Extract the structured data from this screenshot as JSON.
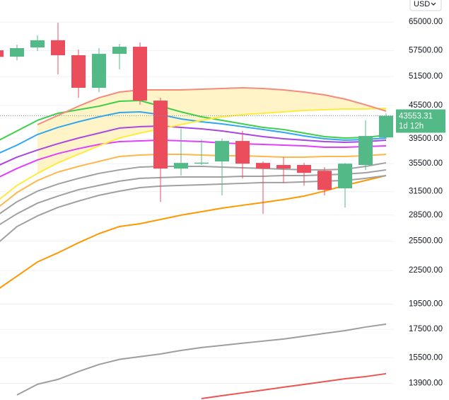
{
  "chart_data": {
    "type": "candlestick",
    "currency": "USD",
    "countdown": "1d 12h",
    "log_scale": true,
    "grid": true,
    "up_color": "#53b987",
    "down_color": "#eb4d5c",
    "open": [
      57600,
      56060,
      58300,
      60130,
      56400,
      49080,
      56730,
      58480,
      46470,
      34760,
      35500,
      35830,
      39110,
      35610,
      35300,
      35300,
      34440,
      31950,
      35300,
      39700
    ],
    "high": [
      57600,
      59000,
      61400,
      64800,
      57780,
      58130,
      59200,
      59560,
      47030,
      41200,
      39350,
      39500,
      40830,
      35830,
      36520,
      35610,
      34970,
      35610,
      42740,
      44000
    ],
    "low": [
      56000,
      55200,
      57430,
      51980,
      47030,
      48200,
      53090,
      45640,
      30150,
      33740,
      35300,
      31000,
      33330,
      28650,
      32700,
      32300,
      31000,
      29440,
      34550,
      39500
    ],
    "close": [
      56000,
      58130,
      60130,
      56400,
      49080,
      56730,
      58480,
      46470,
      34760,
      35610,
      35650,
      39110,
      35500,
      34760,
      34760,
      34130,
      31740,
      35500,
      39950,
      43553.31
    ],
    "series": [
      {
        "color": "#ef5350",
        "values": [
          null,
          null,
          null,
          null,
          null,
          null,
          null,
          null,
          null,
          null,
          13020,
          13180,
          13340,
          13500,
          13670,
          13830,
          14000,
          14170,
          14300,
          14480
        ]
      },
      {
        "color": "#9e9e9e",
        "values": [
          null,
          13220,
          13840,
          14130,
          14610,
          15060,
          15390,
          15570,
          15750,
          15990,
          16190,
          16340,
          16490,
          16640,
          16790,
          16990,
          17200,
          17400,
          17670,
          17890
        ]
      },
      {
        "color": "#ff9800",
        "values": [
          20670,
          21960,
          23330,
          24260,
          25320,
          26330,
          27140,
          27470,
          27970,
          28490,
          28920,
          29360,
          29720,
          30080,
          30450,
          30910,
          31570,
          32350,
          33040,
          33740
        ]
      },
      {
        "color": "#a0a0a0",
        "values": [
          25160,
          27140,
          28400,
          29450,
          30260,
          31010,
          31570,
          32050,
          32250,
          32350,
          32440,
          32540,
          32640,
          32740,
          32740,
          32840,
          32940,
          33040,
          33340,
          33740
        ]
      },
      {
        "color": "#a0a0a0",
        "values": [
          27140,
          28660,
          29990,
          30910,
          31760,
          32350,
          32940,
          33340,
          33440,
          33540,
          33540,
          33540,
          33640,
          33640,
          33740,
          33740,
          33840,
          33940,
          34150,
          34570
        ]
      },
      {
        "color": "#a0a0a0",
        "values": [
          28400,
          30170,
          31570,
          32540,
          33340,
          34050,
          34570,
          34990,
          35090,
          35090,
          35090,
          34990,
          34880,
          34780,
          34670,
          34570,
          34570,
          34670,
          35090,
          35630
        ]
      },
      {
        "color": "#ffb74d",
        "values": [
          29270,
          31380,
          33040,
          34250,
          35090,
          35840,
          36610,
          36830,
          36940,
          36940,
          36830,
          36720,
          36720,
          36610,
          36500,
          36500,
          36610,
          36610,
          36720,
          36940
        ]
      },
      {
        "color": "#e040fb",
        "values": [
          33340,
          34780,
          36060,
          37060,
          37850,
          38540,
          39010,
          39130,
          39240,
          39130,
          39010,
          38770,
          38660,
          38540,
          38420,
          38310,
          38080,
          38080,
          38190,
          38310
        ]
      },
      {
        "color": "#aa46e0",
        "values": [
          35090,
          36500,
          37620,
          38660,
          39600,
          40450,
          41320,
          41570,
          41690,
          41440,
          41190,
          40820,
          40330,
          39840,
          39480,
          39240,
          39010,
          38890,
          39010,
          39240
        ]
      },
      {
        "color": "#2fa7f3",
        "values": [
          36940,
          38420,
          40200,
          41440,
          42450,
          43360,
          44150,
          44290,
          43760,
          42970,
          42450,
          42070,
          41570,
          41070,
          40570,
          39960,
          39480,
          39240,
          39360,
          39600
        ]
      },
      {
        "color": "#3cd04a",
        "values": [
          39010,
          40820,
          42710,
          44020,
          44690,
          45370,
          46340,
          46480,
          45370,
          44290,
          43360,
          42710,
          42070,
          41440,
          41070,
          40450,
          39840,
          39600,
          39720,
          40080
        ]
      },
      {
        "color": "#ffeb3b",
        "fill_floor": true,
        "values": [
          30170,
          32350,
          34050,
          35630,
          36940,
          38310,
          39600,
          40450,
          41190,
          41940,
          42710,
          43360,
          43760,
          44020,
          44290,
          44550,
          44690,
          44820,
          44820,
          44960
        ]
      },
      {
        "color": "#f58a7d",
        "fill": "#fff4c7",
        "values": [
          null,
          null,
          41940,
          43620,
          45370,
          47040,
          48200,
          48640,
          48640,
          48640,
          48790,
          48930,
          49080,
          48930,
          48640,
          48200,
          47620,
          46760,
          45640,
          44420
        ]
      }
    ],
    "ylim": [
      12940,
      71400
    ],
    "yticks": [
      {
        "value": 65000,
        "label": "65000.00"
      },
      {
        "value": 57500,
        "label": "57500.00"
      },
      {
        "value": 51500,
        "label": "51500.00"
      },
      {
        "value": 45500,
        "label": "45500.00"
      },
      {
        "value": 39500,
        "label": "39500.00"
      },
      {
        "value": 35500,
        "label": "35500.00"
      },
      {
        "value": 31500,
        "label": "31500.00"
      },
      {
        "value": 28500,
        "label": "28500.00"
      },
      {
        "value": 25500,
        "label": "25500.00"
      },
      {
        "value": 22500,
        "label": "22500.00"
      },
      {
        "value": 19500,
        "label": "19500.00"
      },
      {
        "value": 17500,
        "label": "17500.00"
      },
      {
        "value": 15500,
        "label": "15500.00"
      },
      {
        "value": 13900,
        "label": "13900.00"
      }
    ]
  }
}
